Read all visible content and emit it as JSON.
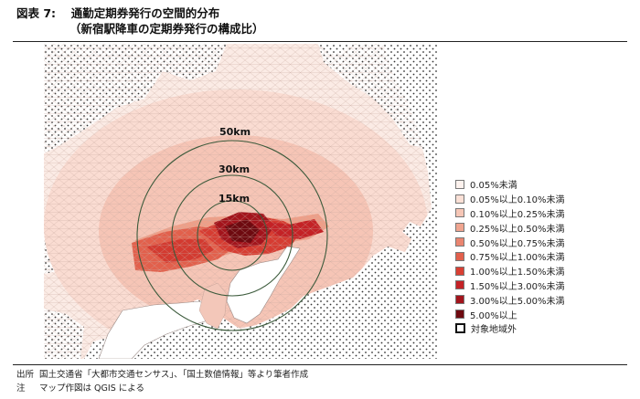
{
  "figure": {
    "number": "図表 7:",
    "title": "通勤定期券発行の空間的分布",
    "subtitle": "（新宿駅降車の定期券発行の構成比）"
  },
  "map": {
    "rings": [
      "50km",
      "30km",
      "15km"
    ],
    "colors": {
      "land_pale": "#fbe9e3",
      "land_light": "#f7d3c7",
      "land_mid": "#f0a893",
      "land_orange": "#e7705a",
      "land_red": "#d4322a",
      "land_dark": "#a3151b",
      "land_darkest": "#5c0a0e",
      "water": "#ffffff",
      "ring": "#3b5a3b"
    }
  },
  "legend": {
    "items": [
      {
        "label": "0.05%未満",
        "color": "#fdf2ee"
      },
      {
        "label": "0.05%以上0.10%未満",
        "color": "#fbe0d6"
      },
      {
        "label": "0.10%以上0.25%未満",
        "color": "#f6c6b6"
      },
      {
        "label": "0.25%以上0.50%未満",
        "color": "#f0a590"
      },
      {
        "label": "0.50%以上0.75%未満",
        "color": "#ea8570"
      },
      {
        "label": "0.75%以上1.00%未満",
        "color": "#e2604c"
      },
      {
        "label": "1.00%以上1.50%未満",
        "color": "#d93f33"
      },
      {
        "label": "1.50%以上3.00%未満",
        "color": "#c42226"
      },
      {
        "label": "3.00%以上5.00%未満",
        "color": "#a3141c"
      },
      {
        "label": "5.00%以上",
        "color": "#6e0a10"
      }
    ],
    "outside_label": "対象地域外"
  },
  "notes": {
    "source_label": "出所",
    "source_text": "国土交通省「大都市交通センサス」、「国土数値情報」等より筆者作成",
    "note_label": "注",
    "note_text": "マップ作図は QGIS による"
  }
}
